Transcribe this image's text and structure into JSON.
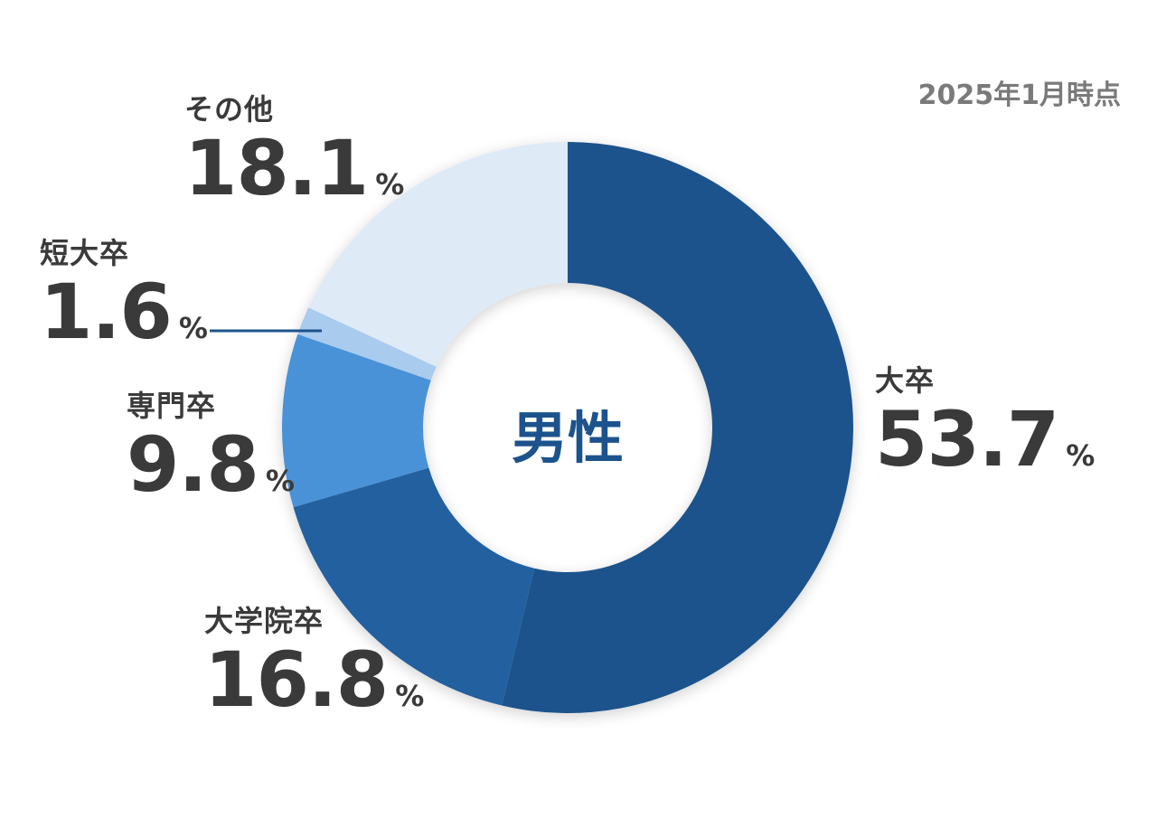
{
  "date_note": "2025年1月時点",
  "chart_data": {
    "type": "pie",
    "title": "",
    "center_label": "男性",
    "unit": "%",
    "start_angle_deg": 0,
    "direction": "clockwise",
    "slices": [
      {
        "label": "大卒",
        "value": 53.7,
        "color": "#1c538c"
      },
      {
        "label": "大学院卒",
        "value": 16.8,
        "color": "#22609f"
      },
      {
        "label": "専門卒",
        "value": 9.8,
        "color": "#4a92d7"
      },
      {
        "label": "短大卒",
        "value": 1.6,
        "color": "#a9cbee"
      },
      {
        "label": "その他",
        "value": 18.1,
        "color": "#deeaf6"
      }
    ]
  },
  "colors": {
    "center_text": "#1c538c",
    "label_text": "#3a3a3a",
    "date_text": "#7a7a7a",
    "leader_line": "#1c538c"
  }
}
